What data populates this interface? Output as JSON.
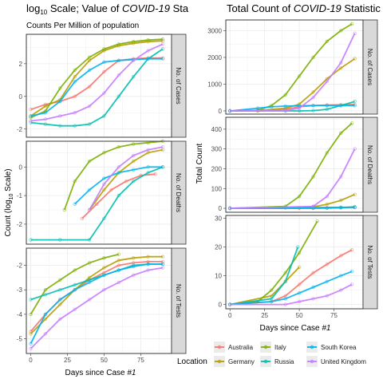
{
  "left_title": "log",
  "left_title_sub": "10",
  "left_title_rest": " Scale; Value of ",
  "left_title_italic": "COVID-19",
  "left_title_tail": " Sta",
  "left_subtitle": "Counts Per Million of population",
  "right_title": "Total Count of ",
  "right_title_italic": "COVID-19",
  "right_title_tail": " Statistic",
  "left_ylabel": "Count (log",
  "left_ylabel_sub": "10",
  "left_ylabel_tail": " Scale)",
  "right_ylabel": "Total Count",
  "xlabel": "Days since Case ",
  "xlabel_italic": "#1",
  "strips": [
    "No. of Cases",
    "No. of Deaths",
    "No. of Tests"
  ],
  "legend": {
    "title": "Location",
    "items": [
      {
        "name": "Australia",
        "color": "#F8766D"
      },
      {
        "name": "Germany",
        "color": "#B79F00"
      },
      {
        "name": "Italy",
        "color": "#7CAE00"
      },
      {
        "name": "Russia",
        "color": "#00BFAE"
      },
      {
        "name": "South Korea",
        "color": "#00B4EF"
      },
      {
        "name": "United Kingdom",
        "color": "#C77CFF"
      }
    ]
  },
  "chart_data": [
    {
      "type": "scatter",
      "panel": "left",
      "facets": [
        "No. of Cases",
        "No. of Deaths",
        "No. of Tests"
      ],
      "x_ticks": [
        0,
        25,
        50,
        75
      ],
      "xlim": [
        -3,
        96
      ],
      "facet_data": [
        {
          "facet": "No. of Cases",
          "ylim": [
            -2.5,
            3.8
          ],
          "y_ticks": [
            -2,
            0,
            2
          ],
          "series": [
            {
              "name": "Australia",
              "x": [
                0,
                10,
                20,
                30,
                40,
                50,
                60,
                70,
                80,
                90
              ],
              "y": [
                -0.8,
                -0.5,
                -0.3,
                0.0,
                0.6,
                1.5,
                2.2,
                2.3,
                2.35,
                2.35
              ]
            },
            {
              "name": "Germany",
              "x": [
                0,
                10,
                20,
                30,
                40,
                50,
                60,
                70,
                80,
                90
              ],
              "y": [
                -1.2,
                -0.6,
                -0.2,
                1.2,
                2.2,
                2.8,
                3.1,
                3.25,
                3.35,
                3.4
              ]
            },
            {
              "name": "Italy",
              "x": [
                0,
                10,
                20,
                30,
                40,
                50,
                60,
                70,
                80,
                90
              ],
              "y": [
                -1.3,
                -0.9,
                0.5,
                1.6,
                2.4,
                2.9,
                3.2,
                3.35,
                3.45,
                3.5
              ]
            },
            {
              "name": "Russia",
              "x": [
                0,
                10,
                20,
                30,
                40,
                50,
                60,
                70,
                80,
                90
              ],
              "y": [
                -1.6,
                -1.7,
                -1.8,
                -1.8,
                -1.7,
                -1.2,
                0.0,
                1.2,
                2.3,
                2.9
              ]
            },
            {
              "name": "South Korea",
              "x": [
                0,
                10,
                20,
                30,
                40,
                50,
                60,
                70,
                80,
                90
              ],
              "y": [
                -1.2,
                -1.0,
                -0.3,
                0.9,
                1.6,
                2.1,
                2.2,
                2.25,
                2.3,
                2.3
              ]
            },
            {
              "name": "United Kingdom",
              "x": [
                0,
                10,
                20,
                30,
                40,
                50,
                60,
                70,
                80,
                90
              ],
              "y": [
                -1.5,
                -1.4,
                -1.2,
                -1.0,
                -0.6,
                0.2,
                1.3,
                2.2,
                2.8,
                3.2
              ]
            }
          ]
        },
        {
          "facet": "No. of Deaths",
          "ylim": [
            -2.7,
            0.9
          ],
          "y_ticks": [
            -2,
            -1,
            0
          ],
          "series": [
            {
              "name": "Australia",
              "x": [
                35,
                45,
                55,
                65,
                75,
                85
              ],
              "y": [
                -1.8,
                -1.3,
                -0.8,
                -0.5,
                -0.3,
                -0.25
              ]
            },
            {
              "name": "Germany",
              "x": [
                40,
                50,
                60,
                70,
                80,
                90
              ],
              "y": [
                -1.5,
                -0.8,
                -0.2,
                0.2,
                0.5,
                0.6
              ]
            },
            {
              "name": "Italy",
              "x": [
                23,
                30,
                40,
                50,
                60,
                70,
                80,
                90
              ],
              "y": [
                -1.5,
                -0.5,
                0.2,
                0.5,
                0.7,
                0.8,
                0.85,
                0.9
              ]
            },
            {
              "name": "Russia",
              "x": [
                0,
                20,
                40,
                50,
                60,
                70,
                80,
                90
              ],
              "y": [
                -2.55,
                -2.55,
                -2.55,
                -1.8,
                -1.0,
                -0.5,
                -0.2,
                0.0
              ]
            },
            {
              "name": "South Korea",
              "x": [
                30,
                40,
                50,
                60,
                70,
                80,
                90
              ],
              "y": [
                -1.3,
                -0.8,
                -0.4,
                -0.2,
                -0.1,
                0.0,
                0.0
              ]
            },
            {
              "name": "United Kingdom",
              "x": [
                40,
                50,
                60,
                70,
                80,
                90
              ],
              "y": [
                -1.5,
                -0.6,
                0.0,
                0.4,
                0.6,
                0.7
              ]
            }
          ]
        },
        {
          "facet": "No. of Tests",
          "ylim": [
            -5.6,
            -1.3
          ],
          "y_ticks": [
            -5,
            -4,
            -3,
            -2
          ],
          "series": [
            {
              "name": "Australia",
              "x": [
                0,
                10,
                20,
                30,
                40,
                50,
                60,
                70,
                80,
                90
              ],
              "y": [
                -4.7,
                -4.0,
                -3.4,
                -3.0,
                -2.6,
                -2.3,
                -2.0,
                -1.9,
                -1.85,
                -1.85
              ]
            },
            {
              "name": "Germany",
              "x": [
                0,
                10,
                20,
                30,
                40,
                50,
                60,
                70,
                80,
                90
              ],
              "y": [
                -4.8,
                -4.2,
                -3.6,
                -3.0,
                -2.5,
                -2.1,
                -1.8,
                -1.7,
                -1.65,
                -1.65
              ]
            },
            {
              "name": "Italy",
              "x": [
                0,
                10,
                20,
                30,
                40,
                50,
                60
              ],
              "y": [
                -4.0,
                -3.0,
                -2.6,
                -2.2,
                -1.9,
                -1.7,
                -1.55
              ]
            },
            {
              "name": "Russia",
              "x": [
                0,
                10,
                20,
                30,
                40,
                50,
                60,
                70,
                80,
                90
              ],
              "y": [
                -3.4,
                -3.2,
                -3.0,
                -2.8,
                -2.6,
                -2.4,
                -2.2,
                -2.0,
                -1.95,
                -1.95
              ]
            },
            {
              "name": "South Korea",
              "x": [
                0,
                10,
                20,
                30,
                40,
                50,
                60,
                70,
                80,
                90
              ],
              "y": [
                -5.2,
                -4.0,
                -3.4,
                -3.0,
                -2.7,
                -2.4,
                -2.2,
                -2.05,
                -1.95,
                -1.95
              ]
            },
            {
              "name": "United Kingdom",
              "x": [
                0,
                10,
                20,
                30,
                40,
                50,
                60,
                70,
                80,
                90
              ],
              "y": [
                -5.4,
                -4.8,
                -4.2,
                -3.8,
                -3.4,
                -3.0,
                -2.7,
                -2.4,
                -2.2,
                -2.1
              ]
            }
          ]
        }
      ]
    },
    {
      "type": "scatter",
      "panel": "right",
      "facets": [
        "No. of Cases",
        "No. of Deaths",
        "No. of Tests"
      ],
      "x_ticks": [
        0,
        25,
        50,
        75
      ],
      "xlim": [
        -3,
        96
      ],
      "facet_data": [
        {
          "facet": "No. of Cases",
          "ylim": [
            -120,
            3400
          ],
          "y_ticks": [
            0,
            1000,
            2000,
            3000
          ],
          "series": [
            {
              "name": "Australia",
              "x": [
                0,
                20,
                40,
                50,
                60,
                70,
                80,
                90
              ],
              "y": [
                0,
                5,
                60,
                150,
                200,
                220,
                230,
                240
              ]
            },
            {
              "name": "Germany",
              "x": [
                0,
                20,
                40,
                50,
                60,
                70,
                80,
                90
              ],
              "y": [
                0,
                10,
                100,
                250,
                700,
                1200,
                1600,
                1950
              ]
            },
            {
              "name": "Italy",
              "x": [
                0,
                20,
                30,
                40,
                50,
                60,
                70,
                80,
                88
              ],
              "y": [
                0,
                20,
                200,
                600,
                1300,
                2000,
                2600,
                3000,
                3250
              ]
            },
            {
              "name": "Russia",
              "x": [
                0,
                40,
                50,
                60,
                70,
                80,
                90
              ],
              "y": [
                0,
                0,
                0,
                10,
                60,
                200,
                350
              ]
            },
            {
              "name": "South Korea",
              "x": [
                0,
                20,
                30,
                40,
                50,
                60,
                70,
                80,
                90
              ],
              "y": [
                0,
                100,
                150,
                180,
                190,
                200,
                200,
                200,
                200
              ]
            },
            {
              "name": "United Kingdom",
              "x": [
                0,
                40,
                50,
                60,
                70,
                80,
                90
              ],
              "y": [
                0,
                10,
                100,
                500,
                1100,
                1800,
                2900
              ]
            }
          ]
        },
        {
          "facet": "No. of Deaths",
          "ylim": [
            -20,
            460
          ],
          "y_ticks": [
            0,
            100,
            200,
            300,
            400
          ],
          "series": [
            {
              "name": "Australia",
              "x": [
                0,
                50,
                60,
                70,
                80,
                90
              ],
              "y": [
                0,
                0,
                1,
                2,
                3,
                4
              ]
            },
            {
              "name": "Germany",
              "x": [
                0,
                50,
                60,
                70,
                80,
                90
              ],
              "y": [
                0,
                2,
                8,
                20,
                40,
                70
              ]
            },
            {
              "name": "Italy",
              "x": [
                0,
                40,
                50,
                60,
                70,
                80,
                88
              ],
              "y": [
                0,
                10,
                60,
                160,
                280,
                380,
                430
              ]
            },
            {
              "name": "Russia",
              "x": [
                0,
                60,
                70,
                80,
                90
              ],
              "y": [
                0,
                0,
                1,
                3,
                8
              ]
            },
            {
              "name": "South Korea",
              "x": [
                0,
                40,
                60,
                80,
                90
              ],
              "y": [
                0,
                2,
                4,
                5,
                5
              ]
            },
            {
              "name": "United Kingdom",
              "x": [
                0,
                60,
                70,
                80,
                90
              ],
              "y": [
                0,
                10,
                60,
                160,
                300
              ]
            }
          ]
        },
        {
          "facet": "No. of Tests",
          "ylim": [
            -1.5,
            31
          ],
          "y_ticks": [
            0,
            10,
            20,
            30
          ],
          "series": [
            {
              "name": "Australia",
              "x": [
                0,
                30,
                40,
                50,
                60,
                70,
                80,
                88
              ],
              "y": [
                0,
                1,
                3,
                7,
                11,
                14,
                17,
                19
              ]
            },
            {
              "name": "Germany",
              "x": [
                0,
                30,
                40,
                50
              ],
              "y": [
                0,
                3,
                8,
                13
              ]
            },
            {
              "name": "Italy",
              "x": [
                0,
                20,
                30,
                40,
                50,
                63
              ],
              "y": [
                0,
                1,
                5,
                11,
                18,
                29
              ]
            },
            {
              "name": "Russia",
              "x": [
                0,
                30,
                40,
                49
              ],
              "y": [
                0,
                2,
                8,
                20
              ]
            },
            {
              "name": "South Korea",
              "x": [
                0,
                30,
                40,
                50,
                60,
                70,
                80,
                88
              ],
              "y": [
                0,
                1,
                2,
                4,
                6,
                8,
                10,
                11.5
              ]
            },
            {
              "name": "United Kingdom",
              "x": [
                0,
                40,
                50,
                60,
                70,
                80,
                88
              ],
              "y": [
                0,
                0,
                1,
                2,
                3,
                5,
                7
              ]
            }
          ]
        }
      ]
    }
  ]
}
